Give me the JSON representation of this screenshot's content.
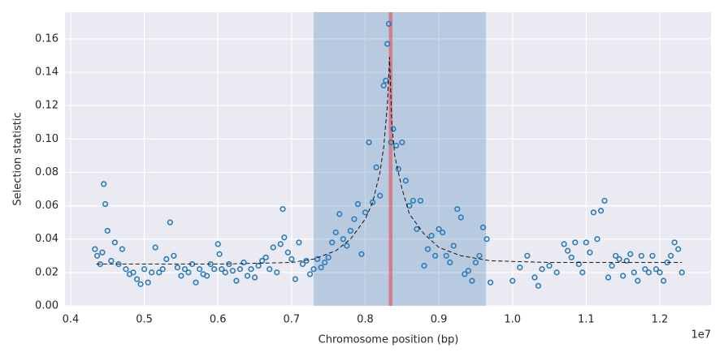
{
  "chart_data": {
    "type": "scatter",
    "xlabel": "Chromosome position (bp)",
    "ylabel": "Selection statistic",
    "x_offset_label": "1e7",
    "xlim": [
      3923000,
      12695000
    ],
    "ylim": [
      0,
      0.176
    ],
    "xticks": [
      {
        "value": 4000000,
        "label": "0.4"
      },
      {
        "value": 5000000,
        "label": "0.5"
      },
      {
        "value": 6000000,
        "label": "0.6"
      },
      {
        "value": 7000000,
        "label": "0.7"
      },
      {
        "value": 8000000,
        "label": "0.8"
      },
      {
        "value": 9000000,
        "label": "0.9"
      },
      {
        "value": 10000000,
        "label": "1.0"
      },
      {
        "value": 11000000,
        "label": "1.1"
      },
      {
        "value": 12000000,
        "label": "1.2"
      }
    ],
    "yticks": [
      {
        "value": 0,
        "label": "0.00"
      },
      {
        "value": 0.02,
        "label": "0.02"
      },
      {
        "value": 0.04,
        "label": "0.04"
      },
      {
        "value": 0.06,
        "label": "0.06"
      },
      {
        "value": 0.08,
        "label": "0.08"
      },
      {
        "value": 0.1,
        "label": "0.10"
      },
      {
        "value": 0.12,
        "label": "0.12"
      },
      {
        "value": 0.14,
        "label": "0.14"
      },
      {
        "value": 0.16,
        "label": "0.16"
      }
    ],
    "grid": true,
    "shaded_region": [
      7300000,
      9640000
    ],
    "shaded_color": "#4682b4",
    "marker_region": [
      8320000,
      8370000
    ],
    "marker_color": "#e05050",
    "series": [
      {
        "color": "#2a7ab8",
        "x": [
          4330000.0,
          4360000.0,
          4400000.0,
          4430000.0,
          4450000.0,
          4470000.0,
          4500000.0,
          4550000.0,
          4600000.0,
          4650000.0,
          4700000.0,
          4750000.0,
          4800000.0,
          4850000.0,
          4900000.0,
          4950000.0,
          5000000.0,
          5050000.0,
          5100000.0,
          5150000.0,
          5200000.0,
          5250000.0,
          5300000.0,
          5350000.0,
          5400000.0,
          5450000.0,
          5500000.0,
          5550000.0,
          5600000.0,
          5650000.0,
          5700000.0,
          5750000.0,
          5800000.0,
          5850000.0,
          5900000.0,
          5950000.0,
          6000000.0,
          6020000.0,
          6050000.0,
          6100000.0,
          6150000.0,
          6200000.0,
          6250000.0,
          6300000.0,
          6350000.0,
          6400000.0,
          6450000.0,
          6500000.0,
          6550000.0,
          6600000.0,
          6650000.0,
          6700000.0,
          6750000.0,
          6800000.0,
          6850000.0,
          6880000.0,
          6900000.0,
          6950000.0,
          7000000.0,
          7050000.0,
          7100000.0,
          7150000.0,
          7200000.0,
          7250000.0,
          7300000.0,
          7350000.0,
          7400000.0,
          7450000.0,
          7500000.0,
          7550000.0,
          7600000.0,
          7650000.0,
          7700000.0,
          7750000.0,
          7800000.0,
          7850000.0,
          7900000.0,
          7950000.0,
          8000000.0,
          8050000.0,
          8100000.0,
          8150000.0,
          8200000.0,
          8250000.0,
          8280000.0,
          8300000.0,
          8320000.0,
          8350000.0,
          8380000.0,
          8420000.0,
          8450000.0,
          8500000.0,
          8550000.0,
          8600000.0,
          8650000.0,
          8700000.0,
          8750000.0,
          8800000.0,
          8850000.0,
          8900000.0,
          8950000.0,
          9000000.0,
          9050000.0,
          9100000.0,
          9150000.0,
          9200000.0,
          9250000.0,
          9300000.0,
          9350000.0,
          9400000.0,
          9450000.0,
          9500000.0,
          9550000.0,
          9600000.0,
          9650000.0,
          9700000.0,
          10000000.0,
          10100000.0,
          10200000.0,
          10300000.0,
          10350000.0,
          10400000.0,
          10500000.0,
          10600000.0,
          10700000.0,
          10750000.0,
          10800000.0,
          10850000.0,
          10900000.0,
          10950000.0,
          11000000.0,
          11050000.0,
          11100000.0,
          11150000.0,
          11200000.0,
          11250000.0,
          11300000.0,
          11350000.0,
          11400000.0,
          11450000.0,
          11500000.0,
          11550000.0,
          11600000.0,
          11650000.0,
          11700000.0,
          11750000.0,
          11800000.0,
          11850000.0,
          11900000.0,
          11950000.0,
          12000000.0,
          12050000.0,
          12100000.0,
          12150000.0,
          12200000.0,
          12250000.0,
          12300000.0
        ],
        "values": [
          0.034,
          0.03,
          0.025,
          0.032,
          0.073,
          0.061,
          0.045,
          0.027,
          0.038,
          0.025,
          0.034,
          0.022,
          0.019,
          0.02,
          0.016,
          0.013,
          0.022,
          0.014,
          0.02,
          0.035,
          0.02,
          0.022,
          0.028,
          0.05,
          0.03,
          0.023,
          0.018,
          0.022,
          0.02,
          0.025,
          0.014,
          0.022,
          0.019,
          0.018,
          0.025,
          0.022,
          0.037,
          0.031,
          0.022,
          0.02,
          0.025,
          0.021,
          0.015,
          0.022,
          0.026,
          0.018,
          0.022,
          0.017,
          0.024,
          0.027,
          0.029,
          0.022,
          0.035,
          0.02,
          0.037,
          0.058,
          0.041,
          0.032,
          0.028,
          0.016,
          0.038,
          0.025,
          0.027,
          0.019,
          0.022,
          0.028,
          0.023,
          0.026,
          0.029,
          0.038,
          0.044,
          0.055,
          0.04,
          0.036,
          0.045,
          0.052,
          0.061,
          0.031,
          0.056,
          0.098,
          0.062,
          0.083,
          0.066,
          0.132,
          0.135,
          0.157,
          0.169,
          0.098,
          0.106,
          0.096,
          0.082,
          0.098,
          0.075,
          0.06,
          0.063,
          0.046,
          0.063,
          0.024,
          0.034,
          0.042,
          0.03,
          0.046,
          0.044,
          0.03,
          0.026,
          0.036,
          0.058,
          0.053,
          0.019,
          0.021,
          0.015,
          0.026,
          0.03,
          0.047,
          0.04,
          0.014,
          0.015,
          0.023,
          0.03,
          0.017,
          0.012,
          0.022,
          0.024,
          0.02,
          0.037,
          0.033,
          0.029,
          0.038,
          0.025,
          0.02,
          0.038,
          0.032,
          0.056,
          0.04,
          0.057,
          0.063,
          0.017,
          0.024,
          0.03,
          0.028,
          0.018,
          0.027,
          0.031,
          0.02,
          0.015,
          0.03,
          0.022,
          0.02,
          0.03,
          0.022,
          0.02,
          0.015,
          0.026,
          0.03,
          0.038,
          0.034,
          0.02
        ]
      },
      {
        "type": "line",
        "color": "#000000",
        "x": [
          4350000.0,
          5000000.0,
          6000000.0,
          7000000.0,
          7300000.0,
          7600000.0,
          7800000.0,
          8000000.0,
          8100000.0,
          8200000.0,
          8250000.0,
          8300000.0,
          8330000.0,
          8360000.0,
          8400000.0,
          8500000.0,
          8600000.0,
          8800000.0,
          9000000.0,
          9300000.0,
          9700000.0,
          10500000.0,
          11500000.0,
          12300000.0
        ],
        "values": [
          0.025,
          0.025,
          0.025,
          0.026,
          0.028,
          0.033,
          0.04,
          0.052,
          0.062,
          0.08,
          0.095,
          0.12,
          0.149,
          0.11,
          0.09,
          0.07,
          0.055,
          0.043,
          0.035,
          0.03,
          0.027,
          0.026,
          0.026,
          0.026
        ]
      }
    ]
  }
}
